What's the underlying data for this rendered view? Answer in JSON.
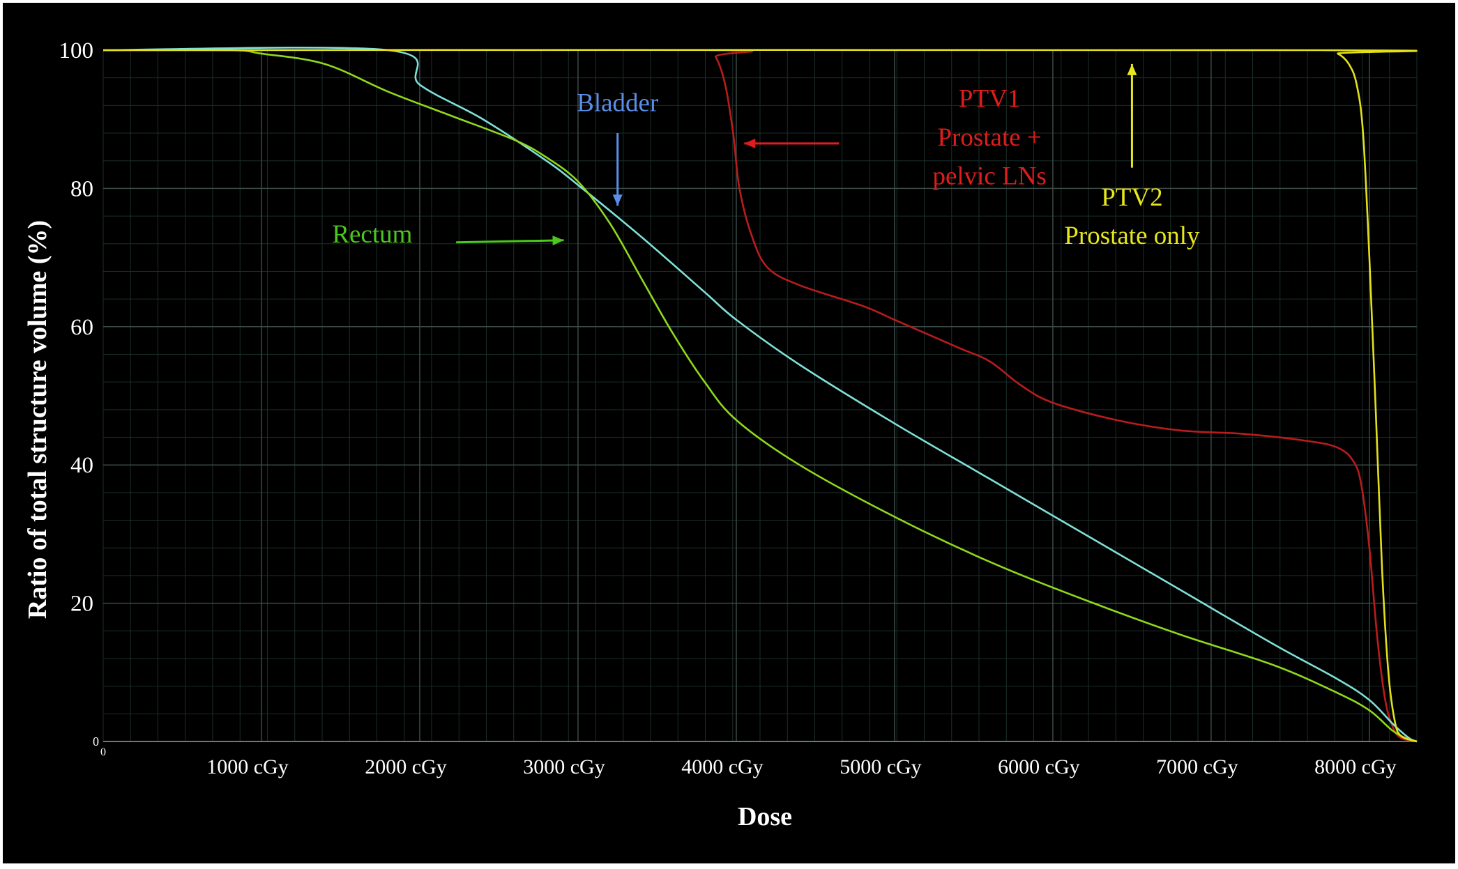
{
  "colors": {
    "background": "#000000",
    "grid_minor": "#1a2e2a",
    "grid_major": "#3a4a47",
    "bladder": "#7fe0d8",
    "rectum": "#8fd81c",
    "ptv1": "#b81c1c",
    "ptv2": "#e2e01c",
    "bladder_label": "#5a8ee8",
    "rectum_label": "#4cc81c",
    "ptv1_label": "#e01c1c",
    "ptv2_label": "#e8e61c"
  },
  "chart_data": {
    "type": "line",
    "xlabel": "Dose",
    "ylabel": "Ratio of total structure volume (%)",
    "xlim": [
      0,
      8300
    ],
    "ylim": [
      0,
      100
    ],
    "grid": true,
    "x_ticks": [
      {
        "value": 0,
        "label": "0"
      },
      {
        "value": 1000,
        "label": "1000 cGy"
      },
      {
        "value": 2000,
        "label": "2000 cGy"
      },
      {
        "value": 3000,
        "label": "3000 cGy"
      },
      {
        "value": 4000,
        "label": "4000 cGy"
      },
      {
        "value": 5000,
        "label": "5000 cGy"
      },
      {
        "value": 6000,
        "label": "6000 cGy"
      },
      {
        "value": 7000,
        "label": "7000 cGy"
      },
      {
        "value": 8000,
        "label": "8000 cGy"
      }
    ],
    "y_ticks": [
      {
        "value": 0,
        "label": "0"
      },
      {
        "value": 20,
        "label": "20"
      },
      {
        "value": 40,
        "label": "40"
      },
      {
        "value": 60,
        "label": "60"
      },
      {
        "value": 80,
        "label": "80"
      },
      {
        "value": 100,
        "label": "100"
      }
    ],
    "series": [
      {
        "name": "Bladder",
        "points": [
          [
            0,
            100
          ],
          [
            1800,
            100
          ],
          [
            2000,
            95
          ],
          [
            2400,
            90
          ],
          [
            2800,
            84
          ],
          [
            3000,
            80.5
          ],
          [
            3400,
            73
          ],
          [
            3800,
            65
          ],
          [
            4000,
            61
          ],
          [
            4400,
            54.5
          ],
          [
            5000,
            46
          ],
          [
            5600,
            38
          ],
          [
            6200,
            30
          ],
          [
            6800,
            22
          ],
          [
            7400,
            14
          ],
          [
            7800,
            9
          ],
          [
            8000,
            6
          ],
          [
            8150,
            2.5
          ],
          [
            8250,
            0.5
          ],
          [
            8300,
            0
          ]
        ]
      },
      {
        "name": "Rectum",
        "points": [
          [
            0,
            100
          ],
          [
            800,
            100
          ],
          [
            1000,
            99.5
          ],
          [
            1400,
            98
          ],
          [
            1800,
            94
          ],
          [
            2200,
            90.5
          ],
          [
            2600,
            87
          ],
          [
            2800,
            84.5
          ],
          [
            3000,
            81
          ],
          [
            3200,
            75
          ],
          [
            3400,
            67
          ],
          [
            3600,
            59
          ],
          [
            3800,
            52
          ],
          [
            4000,
            46.5
          ],
          [
            4400,
            40
          ],
          [
            5000,
            32.5
          ],
          [
            5600,
            26
          ],
          [
            6200,
            20.5
          ],
          [
            6800,
            15.5
          ],
          [
            7400,
            11
          ],
          [
            7800,
            7
          ],
          [
            8000,
            4.5
          ],
          [
            8150,
            1.5
          ],
          [
            8250,
            0.3
          ],
          [
            8300,
            0
          ]
        ]
      },
      {
        "name": "PTV1",
        "points": [
          [
            0,
            100
          ],
          [
            3800,
            100
          ],
          [
            3870,
            99
          ],
          [
            3930,
            95
          ],
          [
            3980,
            88
          ],
          [
            4020,
            80
          ],
          [
            4100,
            73
          ],
          [
            4200,
            68.5
          ],
          [
            4400,
            66
          ],
          [
            4800,
            63
          ],
          [
            5000,
            61
          ],
          [
            5400,
            57
          ],
          [
            5600,
            55
          ],
          [
            5800,
            51.5
          ],
          [
            6000,
            49
          ],
          [
            6400,
            46.5
          ],
          [
            6800,
            45
          ],
          [
            7200,
            44.5
          ],
          [
            7600,
            43.5
          ],
          [
            7800,
            42.5
          ],
          [
            7900,
            40.5
          ],
          [
            7950,
            37
          ],
          [
            8000,
            28
          ],
          [
            8050,
            15
          ],
          [
            8100,
            6
          ],
          [
            8150,
            2
          ],
          [
            8200,
            0.5
          ],
          [
            8300,
            0
          ]
        ]
      },
      {
        "name": "PTV2",
        "points": [
          [
            0,
            100
          ],
          [
            7700,
            100
          ],
          [
            7800,
            99.5
          ],
          [
            7870,
            98
          ],
          [
            7920,
            95
          ],
          [
            7960,
            88
          ],
          [
            8000,
            70
          ],
          [
            8040,
            48
          ],
          [
            8080,
            25
          ],
          [
            8120,
            10
          ],
          [
            8160,
            3
          ],
          [
            8200,
            0.8
          ],
          [
            8300,
            0
          ]
        ]
      }
    ],
    "annotations": [
      {
        "name": "bladder-label",
        "lines": [
          "Bladder"
        ],
        "color_key": "bladder_label",
        "anchor": "middle",
        "at": [
          3250,
          91.2
        ]
      },
      {
        "name": "rectum-label",
        "lines": [
          "Rectum"
        ],
        "color_key": "rectum_label",
        "anchor": "middle",
        "at": [
          1700,
          72.2
        ]
      },
      {
        "name": "ptv1-label",
        "lines": [
          "PTV1",
          "Prostate +",
          "pelvic LNs"
        ],
        "color_key": "ptv1_label",
        "anchor": "middle",
        "at": [
          5600,
          91.8
        ],
        "line_gap": 5.6
      },
      {
        "name": "ptv2-label",
        "lines": [
          "PTV2",
          "Prostate only"
        ],
        "color_key": "ptv2_label",
        "anchor": "middle",
        "at": [
          6500,
          77.5
        ],
        "line_gap": 5.5
      }
    ],
    "arrows": [
      {
        "name": "bladder-arrow",
        "color_key": "bladder_label",
        "from": [
          3250,
          88
        ],
        "to": [
          3250,
          77.5
        ]
      },
      {
        "name": "rectum-arrow",
        "color_key": "rectum_label",
        "from": [
          2230,
          72.2
        ],
        "to": [
          2910,
          72.5
        ]
      },
      {
        "name": "ptv1-arrow",
        "color_key": "ptv1_label",
        "from": [
          4650,
          86.5
        ],
        "to": [
          4050,
          86.5
        ]
      },
      {
        "name": "ptv2-arrow",
        "color_key": "ptv2_label",
        "from": [
          6500,
          83
        ],
        "to": [
          6500,
          98
        ]
      }
    ]
  }
}
